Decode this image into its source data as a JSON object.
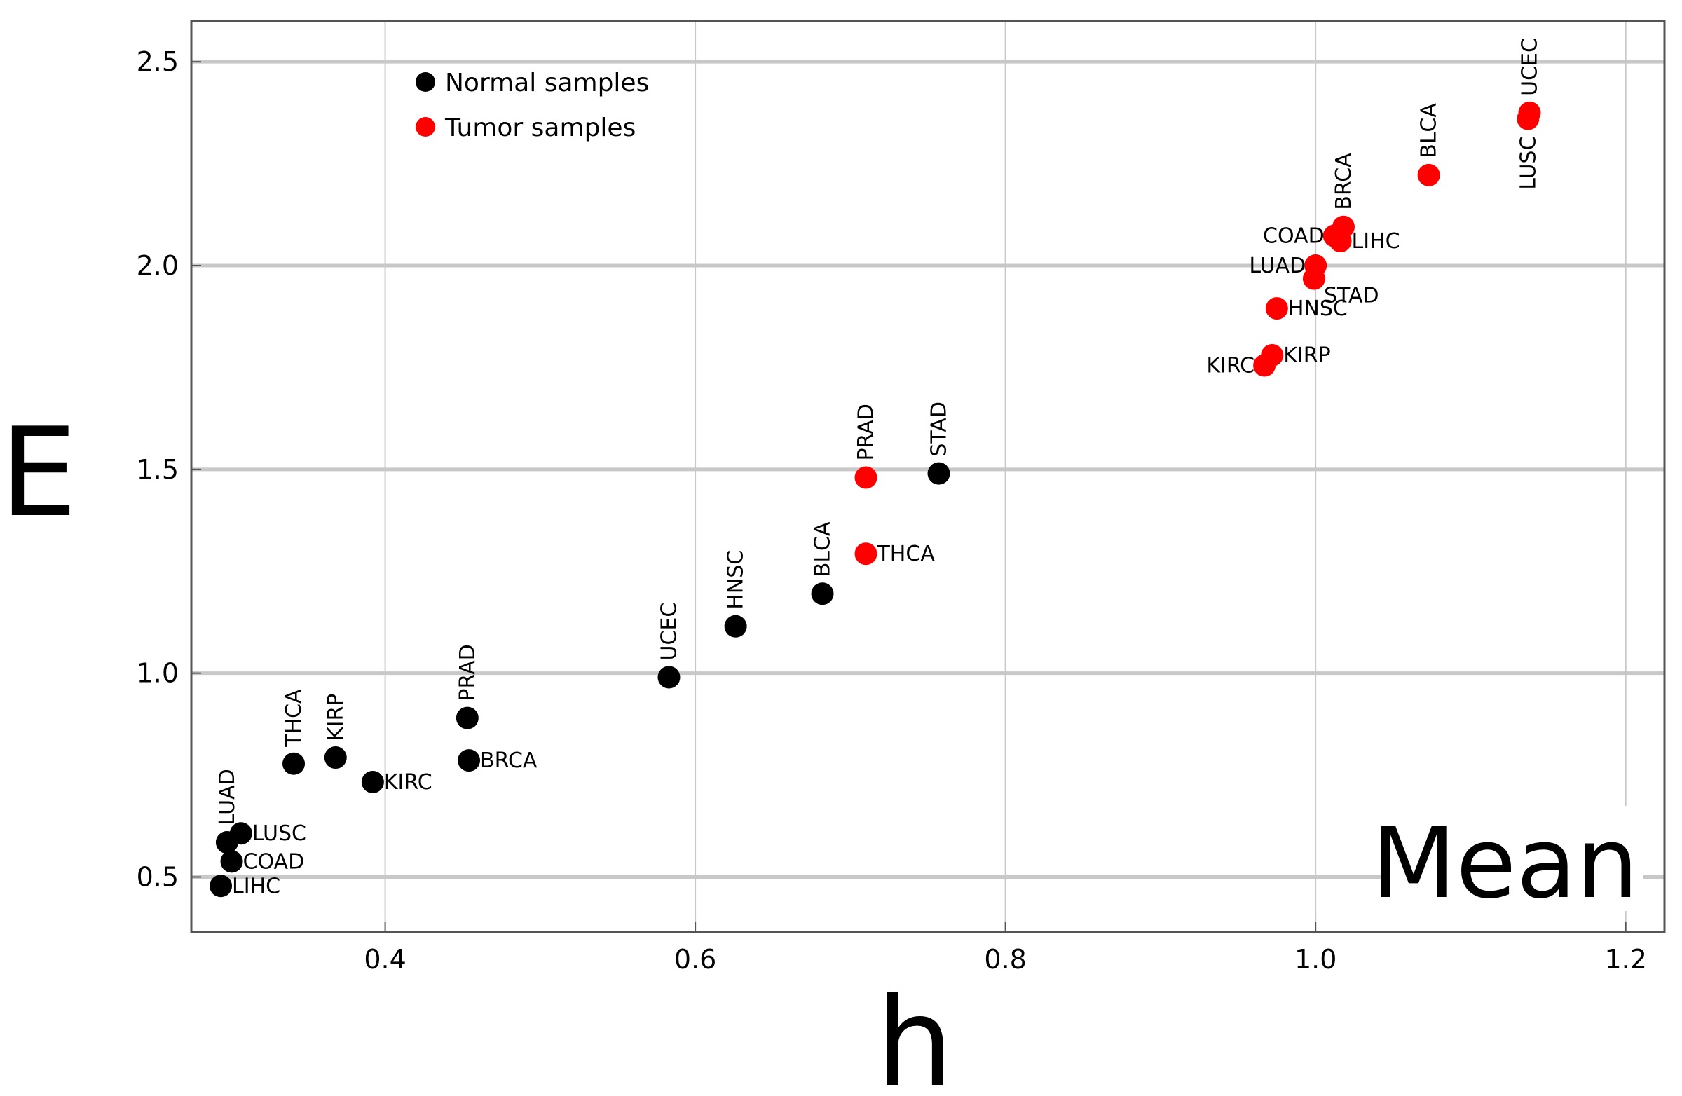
{
  "chart_data": {
    "type": "scatter",
    "title": "",
    "xlabel": "h",
    "ylabel": "E",
    "corner_label": "Mean",
    "xlim": [
      0.275,
      1.225
    ],
    "ylim": [
      0.365,
      2.6
    ],
    "xticks": [
      0.4,
      0.6,
      0.8,
      1.0,
      1.2
    ],
    "yticks": [
      0.5,
      1.0,
      1.5,
      2.0,
      2.5
    ],
    "xtick_labels": [
      "0.4",
      "0.6",
      "0.8",
      "1.0",
      "1.2"
    ],
    "ytick_labels": [
      "0.5",
      "1.0",
      "1.5",
      "2.0",
      "2.5"
    ],
    "grid": true,
    "legend_position": "top-left",
    "series": [
      {
        "name": "Normal samples",
        "color": "#000000",
        "points": [
          {
            "label": "LUAD",
            "x": 0.298,
            "y": 0.585,
            "label_pos": "above-rot"
          },
          {
            "label": "LUSC",
            "x": 0.307,
            "y": 0.607,
            "label_pos": "right"
          },
          {
            "label": "COAD",
            "x": 0.301,
            "y": 0.538,
            "label_pos": "right"
          },
          {
            "label": "LIHC",
            "x": 0.294,
            "y": 0.478,
            "label_pos": "right"
          },
          {
            "label": "THCA",
            "x": 0.341,
            "y": 0.778,
            "label_pos": "above-rot"
          },
          {
            "label": "KIRP",
            "x": 0.368,
            "y": 0.793,
            "label_pos": "above-rot"
          },
          {
            "label": "KIRC",
            "x": 0.392,
            "y": 0.733,
            "label_pos": "right"
          },
          {
            "label": "PRAD",
            "x": 0.453,
            "y": 0.89,
            "label_pos": "above-rot"
          },
          {
            "label": "BRCA",
            "x": 0.454,
            "y": 0.786,
            "label_pos": "right"
          },
          {
            "label": "UCEC",
            "x": 0.583,
            "y": 0.99,
            "label_pos": "above-rot"
          },
          {
            "label": "HNSC",
            "x": 0.626,
            "y": 1.115,
            "label_pos": "above-rot"
          },
          {
            "label": "BLCA",
            "x": 0.682,
            "y": 1.195,
            "label_pos": "above-rot"
          },
          {
            "label": "STAD",
            "x": 0.757,
            "y": 1.49,
            "label_pos": "above-rot"
          }
        ]
      },
      {
        "name": "Tumor samples",
        "color": "#ff0000",
        "points": [
          {
            "label": "PRAD",
            "x": 0.71,
            "y": 1.48,
            "label_pos": "above-rot"
          },
          {
            "label": "THCA",
            "x": 0.71,
            "y": 1.293,
            "label_pos": "right"
          },
          {
            "label": "KIRC",
            "x": 0.967,
            "y": 1.755,
            "label_pos": "left"
          },
          {
            "label": "KIRP",
            "x": 0.972,
            "y": 1.78,
            "label_pos": "right"
          },
          {
            "label": "HNSC",
            "x": 0.975,
            "y": 1.895,
            "label_pos": "right"
          },
          {
            "label": "LUAD",
            "x": 1.0,
            "y": 2.0,
            "label_pos": "left"
          },
          {
            "label": "STAD",
            "x": 0.999,
            "y": 1.968,
            "label_pos": "right-below"
          },
          {
            "label": "COAD",
            "x": 1.012,
            "y": 2.073,
            "label_pos": "left"
          },
          {
            "label": "LIHC",
            "x": 1.016,
            "y": 2.06,
            "label_pos": "right"
          },
          {
            "label": "BRCA",
            "x": 1.018,
            "y": 2.095,
            "label_pos": "above-rot"
          },
          {
            "label": "BLCA",
            "x": 1.073,
            "y": 2.222,
            "label_pos": "above-rot"
          },
          {
            "label": "UCEC",
            "x": 1.138,
            "y": 2.375,
            "label_pos": "above-rot"
          },
          {
            "label": "LUSC",
            "x": 1.137,
            "y": 2.36,
            "label_pos": "below-rot"
          }
        ]
      }
    ]
  }
}
